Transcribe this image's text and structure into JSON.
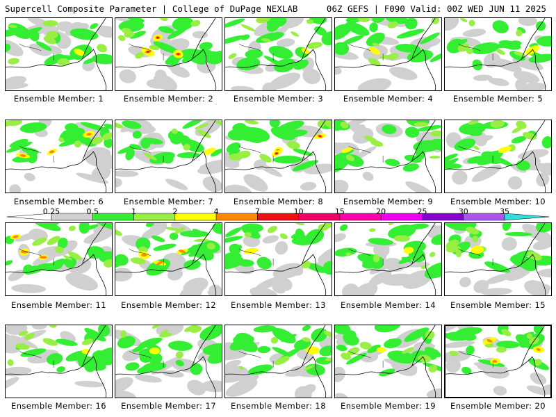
{
  "header": {
    "left": "Supercell Composite Parameter | College of DuPage NEXLAB",
    "right": "06Z GEFS | F090 Valid: 00Z WED JUN 11 2025"
  },
  "members": [
    "Ensemble Member: 1",
    "Ensemble Member: 2",
    "Ensemble Member: 3",
    "Ensemble Member: 4",
    "Ensemble Member: 5",
    "Ensemble Member: 6",
    "Ensemble Member: 7",
    "Ensemble Member: 8",
    "Ensemble Member: 9",
    "Ensemble Member: 10",
    "Ensemble Member: 11",
    "Ensemble Member: 12",
    "Ensemble Member: 13",
    "Ensemble Member: 14",
    "Ensemble Member: 15",
    "Ensemble Member: 16",
    "Ensemble Member: 17",
    "Ensemble Member: 18",
    "Ensemble Member: 19",
    "Ensemble Member: 20"
  ],
  "colorbar": {
    "thresholds": [
      "0.25",
      "0.5",
      "1",
      "2",
      "4",
      "7",
      "10",
      "15",
      "20",
      "25",
      "30",
      "35"
    ],
    "colors": [
      "#d0d0d0",
      "#33ee33",
      "#99ee44",
      "#ffff00",
      "#ff8800",
      "#ee1111",
      "#ee0066",
      "#ff00aa",
      "#ee00ee",
      "#8800cc",
      "#aa55ee",
      "#33dddd"
    ]
  }
}
